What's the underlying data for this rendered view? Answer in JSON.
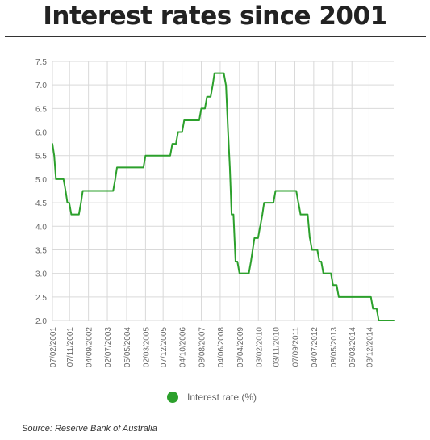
{
  "title": "Interest rates since 2001",
  "source": "Source: Reserve Bank of Australia",
  "colors": {
    "line": "#2ca02c",
    "grid": "#d9d9d9",
    "text": "#666666"
  },
  "chart_data": {
    "type": "line",
    "title": "Interest rates since 2001",
    "ylim": [
      2.0,
      7.5
    ],
    "yticks": [
      "2.0",
      "2.5",
      "3.0",
      "3.5",
      "4.0",
      "4.5",
      "5.0",
      "5.5",
      "6.0",
      "6.5",
      "7.0",
      "7.5"
    ],
    "xticks": [
      "07/02/2001",
      "07/11/2001",
      "04/09/2002",
      "02/07/2003",
      "05/05/2004",
      "02/03/2005",
      "07/12/2005",
      "04/10/2006",
      "08/08/2007",
      "04/06/2008",
      "08/04/2009",
      "03/02/2010",
      "03/11/2010",
      "07/09/2011",
      "04/07/2012",
      "08/05/2013",
      "05/03/2014",
      "03/12/2014"
    ],
    "grid": true,
    "legend": {
      "position": "bottom-center"
    },
    "series": [
      {
        "name": "Interest rate (%)",
        "color": "#2ca02c",
        "points": [
          [
            "2001-02-07",
            5.75
          ],
          [
            "2001-03-07",
            5.5
          ],
          [
            "2001-04-04",
            5.0
          ],
          [
            "2001-09-05",
            4.75
          ],
          [
            "2001-10-03",
            4.5
          ],
          [
            "2001-12-05",
            4.25
          ],
          [
            "2002-05-08",
            4.5
          ],
          [
            "2002-06-05",
            4.75
          ],
          [
            "2003-11-05",
            5.0
          ],
          [
            "2003-12-03",
            5.25
          ],
          [
            "2005-03-02",
            5.5
          ],
          [
            "2006-05-03",
            5.75
          ],
          [
            "2006-08-02",
            6.0
          ],
          [
            "2006-11-08",
            6.25
          ],
          [
            "2007-08-08",
            6.5
          ],
          [
            "2007-11-07",
            6.75
          ],
          [
            "2008-02-06",
            7.0
          ],
          [
            "2008-03-05",
            7.25
          ],
          [
            "2008-09-03",
            7.0
          ],
          [
            "2008-10-08",
            6.0
          ],
          [
            "2008-11-05",
            5.25
          ],
          [
            "2008-12-03",
            4.25
          ],
          [
            "2009-02-04",
            3.25
          ],
          [
            "2009-04-08",
            3.0
          ],
          [
            "2009-10-07",
            3.25
          ],
          [
            "2009-11-04",
            3.5
          ],
          [
            "2009-12-02",
            3.75
          ],
          [
            "2010-03-03",
            4.0
          ],
          [
            "2010-04-07",
            4.25
          ],
          [
            "2010-05-05",
            4.5
          ],
          [
            "2010-11-03",
            4.75
          ],
          [
            "2011-11-02",
            4.5
          ],
          [
            "2011-12-07",
            4.25
          ],
          [
            "2012-05-02",
            3.75
          ],
          [
            "2012-06-06",
            3.5
          ],
          [
            "2012-10-03",
            3.25
          ],
          [
            "2012-12-05",
            3.0
          ],
          [
            "2013-05-08",
            2.75
          ],
          [
            "2013-08-07",
            2.5
          ],
          [
            "2015-02-04",
            2.25
          ],
          [
            "2015-05-06",
            2.0
          ],
          [
            "2015-12-31",
            2.0
          ]
        ]
      }
    ]
  }
}
